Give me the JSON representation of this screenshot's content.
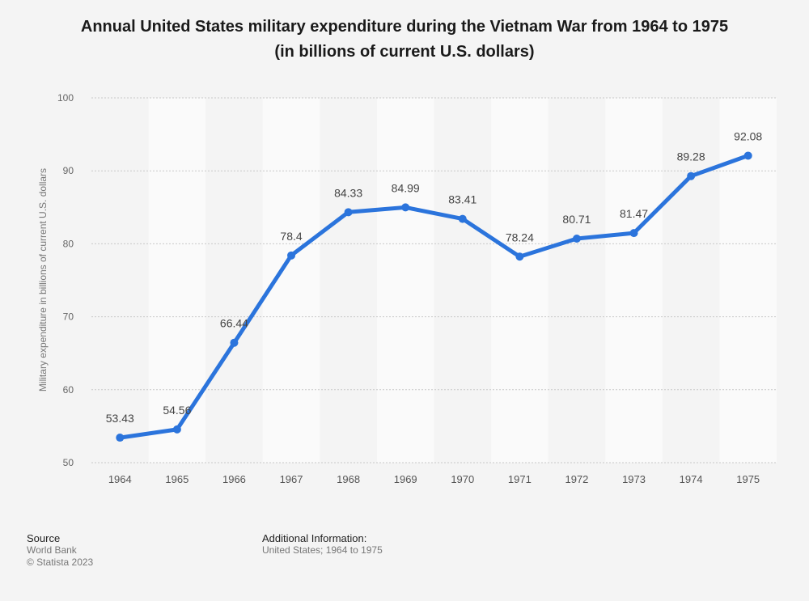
{
  "chart_data": {
    "type": "line",
    "title": "Annual United States military expenditure during the Vietnam War from 1964 to 1975",
    "subtitle": "(in billions of current U.S. dollars)",
    "ylabel": "Military expenditure in billions of current U.S. dollars",
    "xlabel": "",
    "categories": [
      "1964",
      "1965",
      "1966",
      "1967",
      "1968",
      "1969",
      "1970",
      "1971",
      "1972",
      "1973",
      "1974",
      "1975"
    ],
    "series": [
      {
        "values": [
          53.43,
          54.56,
          66.44,
          78.4,
          84.33,
          84.99,
          83.41,
          78.24,
          80.71,
          81.47,
          89.28,
          92.08
        ]
      }
    ],
    "data_labels": [
      "53.43",
      "54.56",
      "66.44",
      "78.4",
      "84.33",
      "84.99",
      "83.41",
      "78.24",
      "80.71",
      "81.47",
      "89.28",
      "92.08"
    ],
    "ylim": [
      50,
      100
    ],
    "yticks": [
      "50",
      "60",
      "70",
      "80",
      "90",
      "100"
    ],
    "grid": true,
    "legend": "none",
    "colors": {
      "line": "#2b74dc",
      "stripe": "#fafafa",
      "grid": "#c8c8c8"
    }
  },
  "footer": {
    "source_heading": "Source",
    "source_name": "World Bank",
    "copyright": "© Statista 2023",
    "info_heading": "Additional Information:",
    "info_text": "United States; 1964 to 1975"
  }
}
